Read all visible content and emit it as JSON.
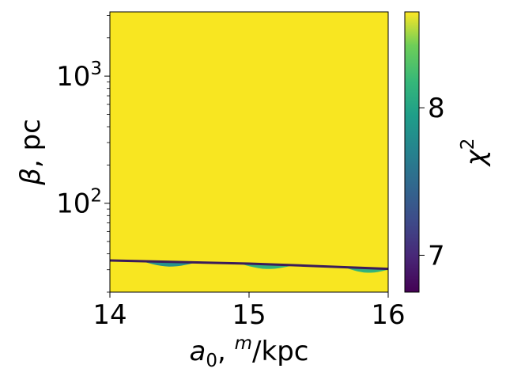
{
  "chart_data": {
    "type": "heatmap",
    "xlabel": "a_0, ^m/kpc",
    "xlabel_parts": {
      "symbol": "a",
      "subscript": "0",
      "sep": ", ",
      "superscript": "m",
      "unit": "/kpc"
    },
    "ylabel": "β, pc",
    "ylabel_parts": {
      "symbol": "β",
      "unit": ", pc"
    },
    "xlim": [
      14,
      16
    ],
    "ylim": [
      20,
      3200
    ],
    "yscale": "log",
    "x_ticks": [
      {
        "value": 14,
        "label": "14"
      },
      {
        "value": 15,
        "label": "15"
      },
      {
        "value": 16,
        "label": "16"
      }
    ],
    "y_ticks": [
      {
        "value": 100,
        "base": "10",
        "exp": "2"
      },
      {
        "value": 1000,
        "base": "10",
        "exp": "3"
      }
    ],
    "colorbar": {
      "label_base": "χ",
      "label_exp": "2",
      "range": [
        6.75,
        8.65
      ],
      "colormap": "viridis",
      "ticks": [
        {
          "value": 7,
          "label": "7"
        },
        {
          "value": 8,
          "label": "8"
        }
      ]
    },
    "background_value": 8.6,
    "valley": {
      "description_free": true,
      "points": [
        {
          "x": 14.0,
          "y": 35.5
        },
        {
          "x": 14.5,
          "y": 34.5
        },
        {
          "x": 15.0,
          "y": 33.5
        },
        {
          "x": 15.5,
          "y": 32.0
        },
        {
          "x": 16.0,
          "y": 30.5
        }
      ],
      "min_value": 6.8,
      "lobes": [
        {
          "x_start": 14.25,
          "x_end": 14.6,
          "value": 7.6
        },
        {
          "x_start": 14.95,
          "x_end": 15.3,
          "value": 7.7
        },
        {
          "x_start": 15.7,
          "x_end": 16.0,
          "value": 7.7
        }
      ]
    },
    "grid": false,
    "legend": "none"
  }
}
